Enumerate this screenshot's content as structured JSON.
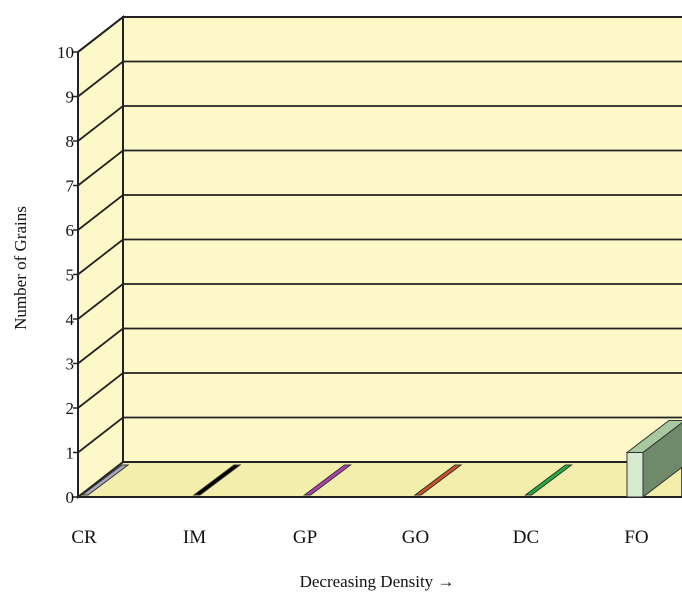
{
  "chart_data": {
    "type": "bar",
    "three_d": true,
    "title": "",
    "xlabel": "Decreasing Density →",
    "ylabel": "Number of Grains",
    "ylim": [
      0,
      10
    ],
    "yticks": [
      "0",
      "1",
      "2",
      "3",
      "4",
      "5",
      "6",
      "7",
      "8",
      "9",
      "10"
    ],
    "grid": true,
    "categories": [
      "CR",
      "IM",
      "GP",
      "GO",
      "DC",
      "FO"
    ],
    "values": [
      0,
      0,
      0,
      0,
      0,
      1
    ],
    "colors": [
      "#a8a8c0",
      "#000000",
      "#b040b0",
      "#d05020",
      "#20b040",
      "#6e8a6a"
    ],
    "wall_color": "#fdf8c8",
    "floor_color": "#f4eeac"
  }
}
